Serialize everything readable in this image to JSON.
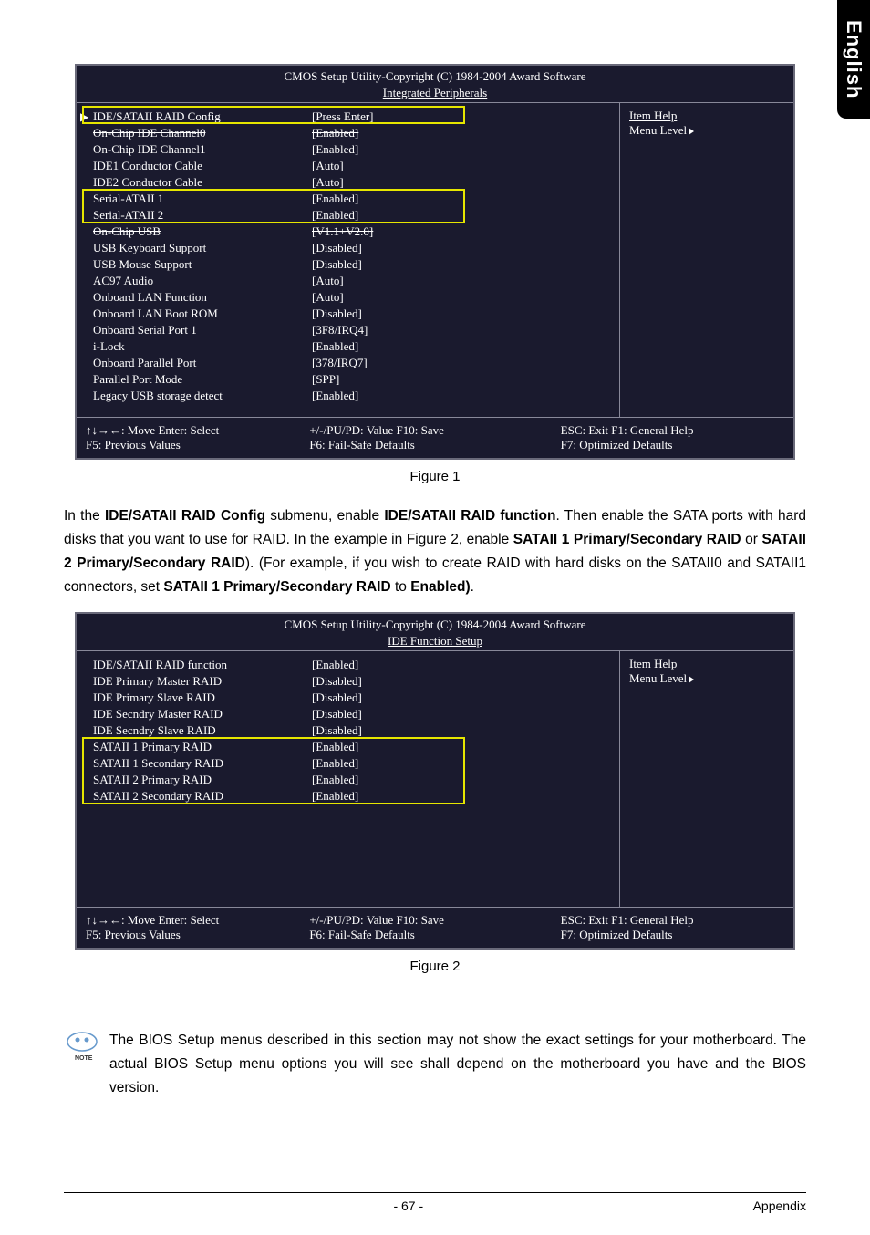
{
  "side_tab": "English",
  "bios1": {
    "header": "CMOS Setup Utility-Copyright (C) 1984-2004 Award Software",
    "subheader": "Integrated Peripherals",
    "rows": [
      {
        "label": "IDE/SATAII RAID Config",
        "value": "[Press Enter]",
        "arrow": true
      },
      {
        "label": "On-Chip IDE Channel0",
        "value": "[Enabled]",
        "strike": true
      },
      {
        "label": "On-Chip IDE Channel1",
        "value": "[Enabled]"
      },
      {
        "label": "IDE1 Conductor Cable",
        "value": "[Auto]"
      },
      {
        "label": "IDE2 Conductor Cable",
        "value": "[Auto]"
      },
      {
        "label": "Serial-ATAII 1",
        "value": "[Enabled]"
      },
      {
        "label": "Serial-ATAII 2",
        "value": "[Enabled]"
      },
      {
        "label": "On-Chip USB",
        "value": "[V1.1+V2.0]",
        "strike": true
      },
      {
        "label": "USB Keyboard Support",
        "value": "[Disabled]"
      },
      {
        "label": "USB Mouse Support",
        "value": "[Disabled]"
      },
      {
        "label": "AC97 Audio",
        "value": "[Auto]"
      },
      {
        "label": "Onboard LAN Function",
        "value": "[Auto]"
      },
      {
        "label": "Onboard LAN Boot ROM",
        "value": "[Disabled]"
      },
      {
        "label": "Onboard Serial Port 1",
        "value": "[3F8/IRQ4]"
      },
      {
        "label": "i-Lock",
        "value": "[Enabled]"
      },
      {
        "label": "Onboard Parallel Port",
        "value": "[378/IRQ7]"
      },
      {
        "label": "Parallel Port Mode",
        "value": "[SPP]"
      },
      {
        "label": "Legacy USB storage detect",
        "value": "[Enabled]"
      }
    ],
    "help_title": "Item Help",
    "help_sub": "Menu Level",
    "footer": {
      "c1a": "↑↓→←: Move      Enter: Select",
      "c1b": "F5: Previous Values",
      "c2a": "+/-/PU/PD: Value        F10: Save",
      "c2b": "F6: Fail-Safe Defaults",
      "c3a": "ESC: Exit        F1: General Help",
      "c3b": "F7: Optimized Defaults"
    }
  },
  "fig1_caption": "Figure 1",
  "para1_pre": "In the ",
  "para1_b1": "IDE/SATAII RAID Config",
  "para1_mid1": " submenu, enable ",
  "para1_b2": "IDE/SATAII RAID function",
  "para1_mid2": ". Then enable the SATA ports with hard disks that you want to use for RAID. In the example in Figure 2, enable ",
  "para1_b3": "SATAII 1 Primary/Secondary RAID",
  "para1_mid3": " or ",
  "para1_b4": "SATAII 2 Primary/Secondary RAID",
  "para1_mid4": "). (For example, if you wish to create RAID with hard disks on the SATAII0 and SATAII1 connectors, set ",
  "para1_b5": "SATAII 1 Primary/Secondary RAID",
  "para1_mid5": " to ",
  "para1_b6": "Enabled)",
  "para1_end": ".",
  "bios2": {
    "header": "CMOS Setup Utility-Copyright (C) 1984-2004 Award Software",
    "subheader": "IDE Function Setup",
    "rows": [
      {
        "label": "IDE/SATAII RAID function",
        "value": "[Enabled]"
      },
      {
        "label": "IDE Primary Master RAID",
        "value": "[Disabled]"
      },
      {
        "label": "IDE Primary Slave RAID",
        "value": "[Disabled]"
      },
      {
        "label": "IDE Secndry Master RAID",
        "value": "[Disabled]"
      },
      {
        "label": "IDE Secndry Slave RAID",
        "value": "[Disabled]"
      },
      {
        "label": "SATAII 1 Primary RAID",
        "value": "[Enabled]"
      },
      {
        "label": "SATAII 1 Secondary RAID",
        "value": "[Enabled]"
      },
      {
        "label": "SATAII 2 Primary RAID",
        "value": "[Enabled]"
      },
      {
        "label": "SATAII 2 Secondary RAID",
        "value": "[Enabled]"
      }
    ],
    "help_title": "Item Help",
    "help_sub": "Menu Level",
    "footer": {
      "c1a": "↑↓→←: Move      Enter: Select",
      "c1b": "F5: Previous Values",
      "c2a": "+/-/PU/PD: Value        F10: Save",
      "c2b": "F6: Fail-Safe Defaults",
      "c3a": "ESC: Exit        F1: General Help",
      "c3b": "F7: Optimized Defaults"
    }
  },
  "fig2_caption": "Figure 2",
  "note_label": "NOTE",
  "note_text": "The BIOS Setup menus described in this section may not show the exact settings for your motherboard. The actual BIOS Setup menu options you will see shall depend on the motherboard you have and the BIOS version.",
  "page_num": "- 67 -",
  "page_section": "Appendix"
}
